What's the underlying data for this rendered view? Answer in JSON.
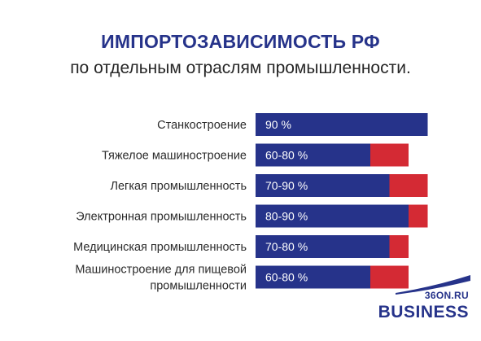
{
  "title": "ИМПОРТОЗАВИСИМОСТЬ РФ",
  "subtitle": "по отдельным отраслям промышленности.",
  "colors": {
    "base": "#26338a",
    "range": "#d42a34",
    "title": "#26338a"
  },
  "chart_data": {
    "type": "bar",
    "orientation": "horizontal",
    "categories": [
      "Станкостроение",
      "Тяжелое машиностроение",
      "Легкая промышленность",
      "Электронная промышленность",
      "Медицинская промышленность",
      "Машиностроение для пищевой промышленности"
    ],
    "category_lines": [
      [
        "Станкостроение"
      ],
      [
        "Тяжелое машиностроение"
      ],
      [
        "Легкая промышленность"
      ],
      [
        "Электронная промышленность"
      ],
      [
        "Медицинская промышленность"
      ],
      [
        "Машиностроение для пищевой",
        "промышленности"
      ]
    ],
    "value_labels": [
      "90 %",
      "60-80 %",
      "70-90 %",
      "80-90 %",
      "70-80 %",
      "60-80 %"
    ],
    "series": [
      {
        "values": [
          90,
          60,
          70,
          80,
          70,
          60
        ]
      },
      {
        "values": [
          0,
          20,
          20,
          10,
          10,
          20
        ]
      }
    ],
    "xlim": [
      0,
      100
    ],
    "grid": false,
    "legend": "none"
  },
  "logo": {
    "top": "36ON.RU",
    "main": "BUSINESS"
  }
}
